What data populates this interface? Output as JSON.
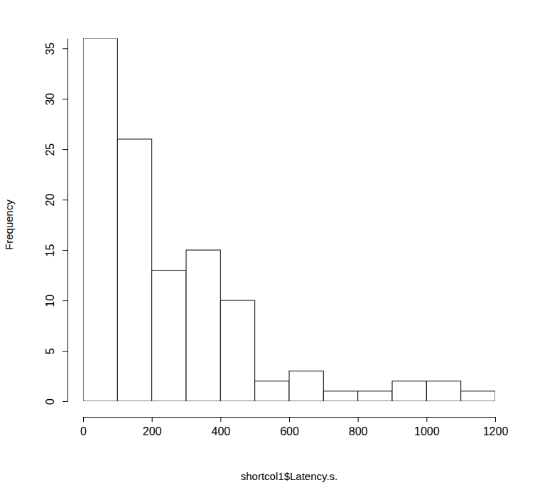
{
  "chart_data": {
    "type": "histogram",
    "x_label": "shortcol1$Latency.s.",
    "y_label": "Frequency",
    "bins": [
      0,
      100,
      200,
      300,
      400,
      500,
      600,
      700,
      800,
      900,
      1000,
      1100,
      1200
    ],
    "counts": [
      36,
      26,
      13,
      15,
      10,
      2,
      3,
      1,
      1,
      2,
      2,
      1
    ],
    "color": "#ffffff",
    "xlim": [
      0,
      1200
    ],
    "ylim": [
      0,
      36
    ],
    "xticks": [
      0,
      200,
      400,
      600,
      800,
      1000,
      1200
    ],
    "yticks": [
      0,
      5,
      10,
      15,
      20,
      25,
      30,
      35
    ]
  }
}
